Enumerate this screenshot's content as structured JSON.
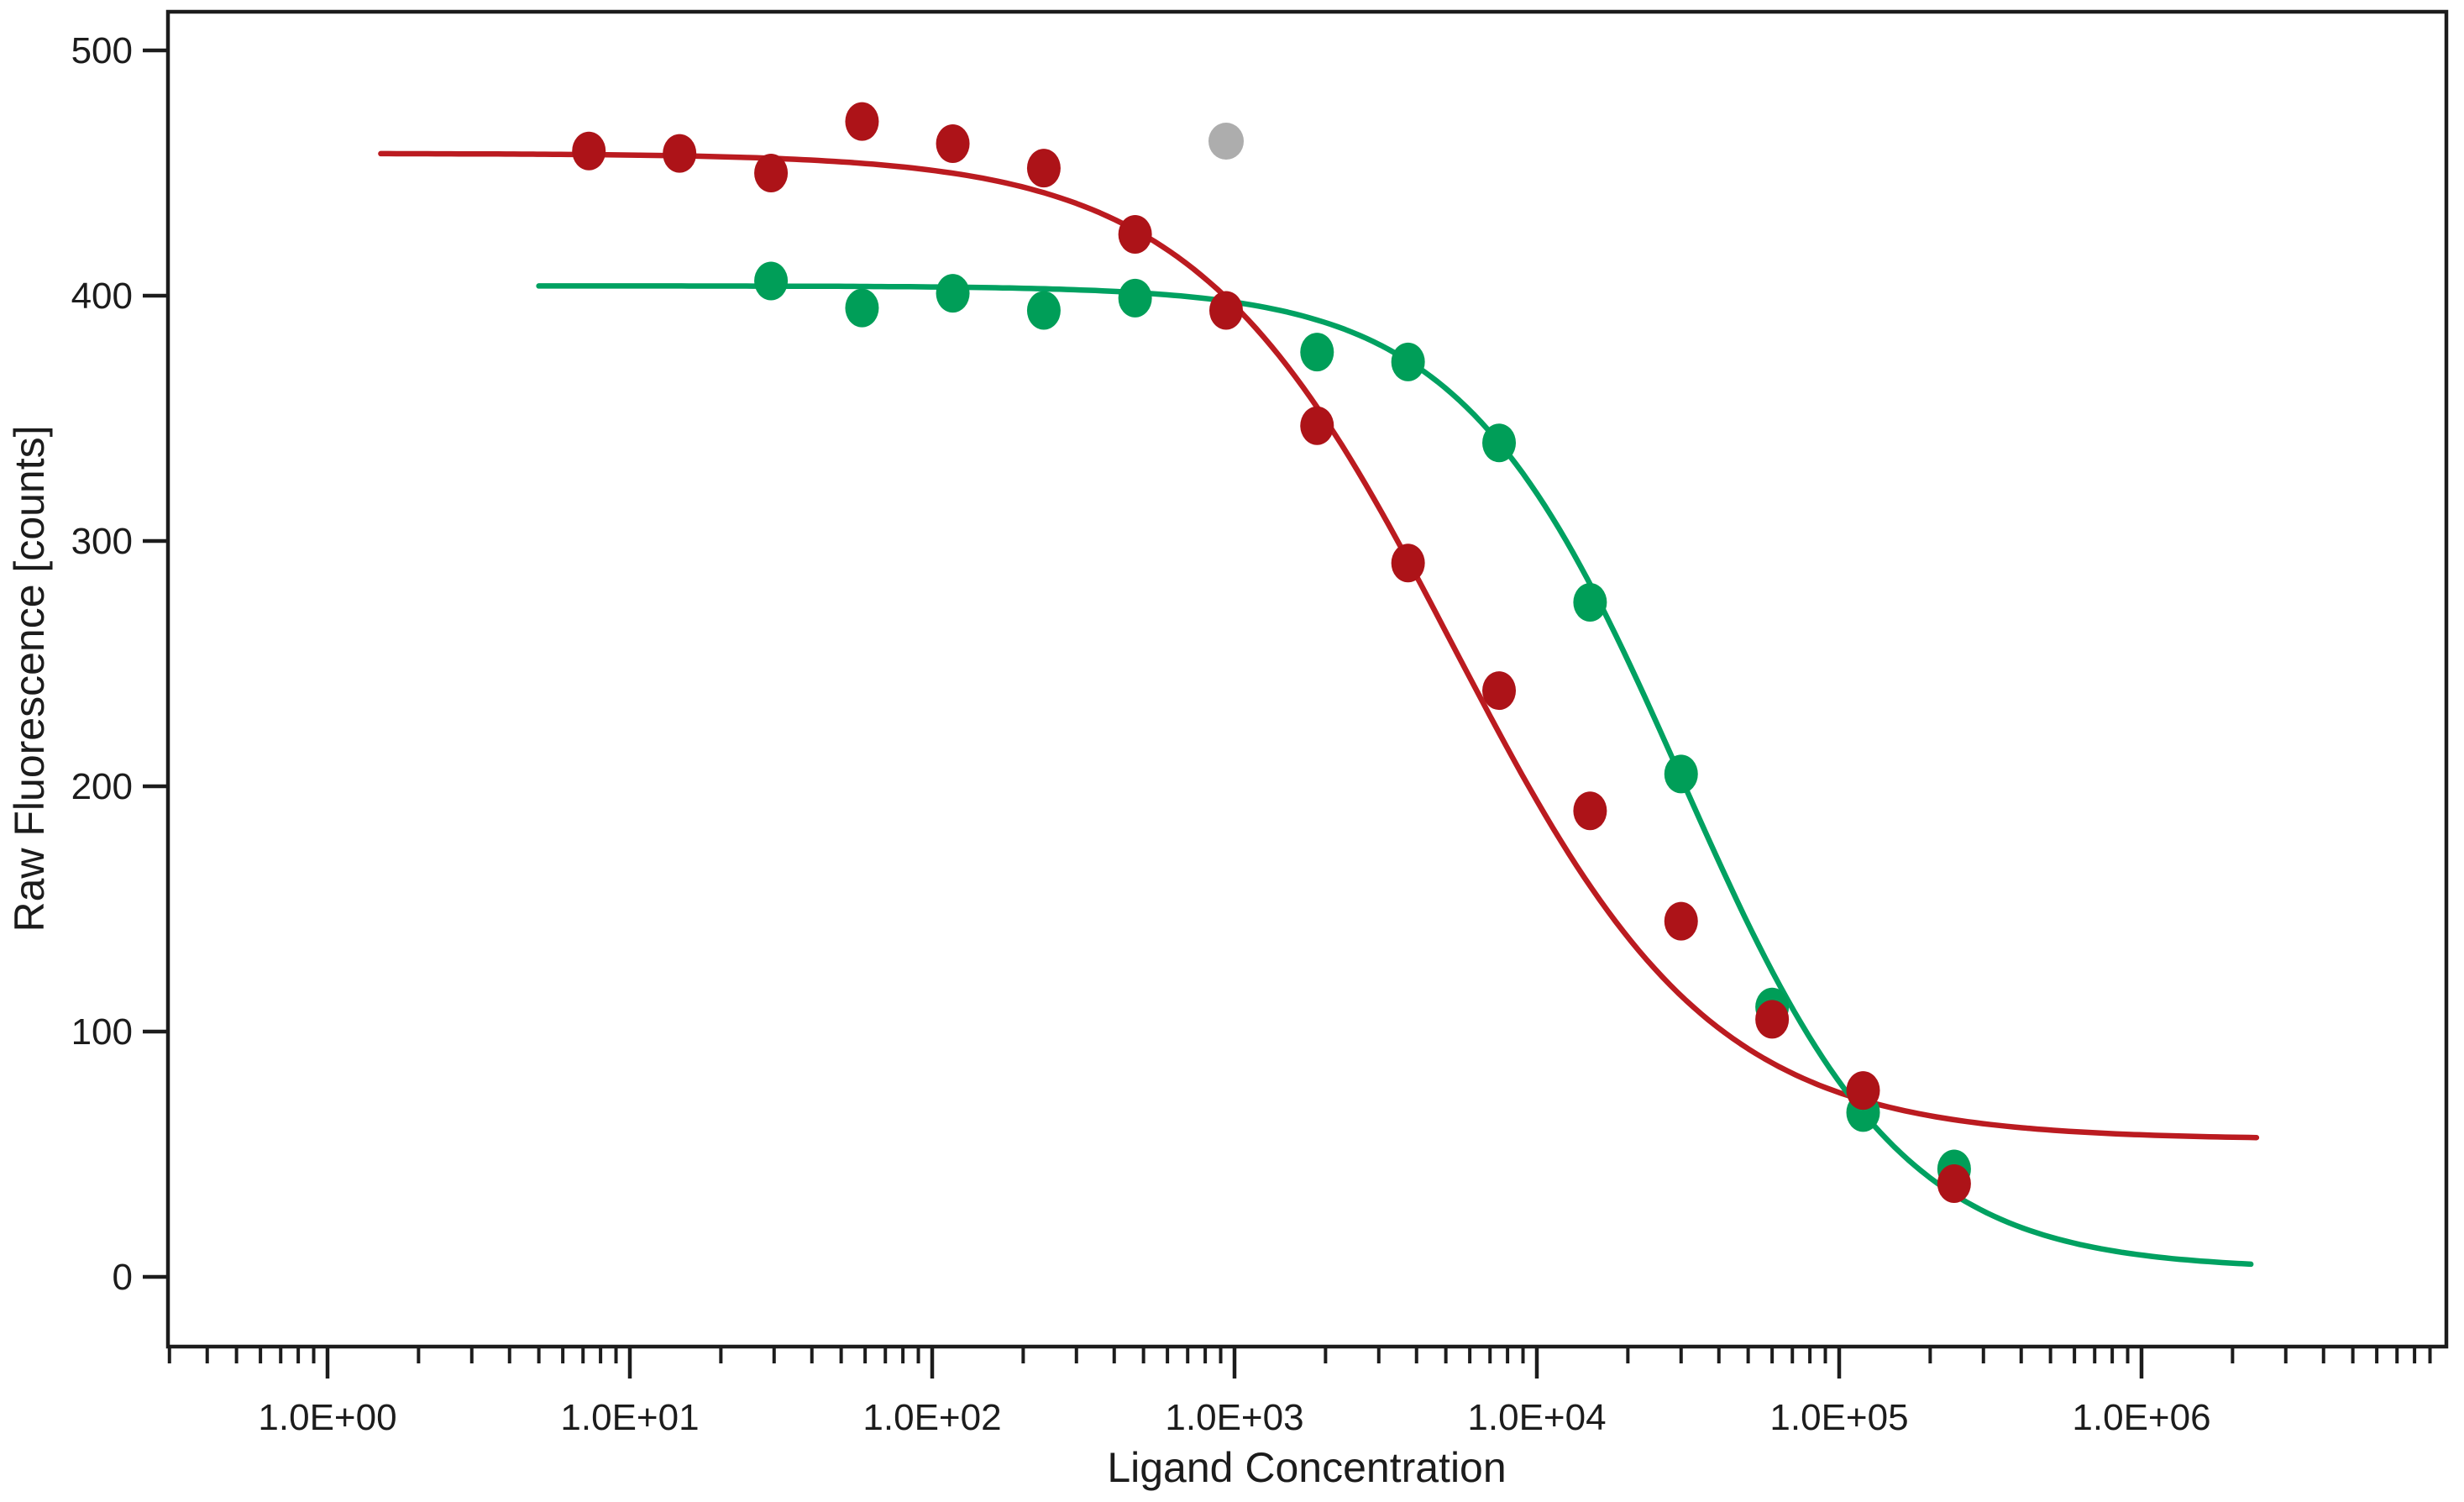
{
  "chart_data": {
    "type": "scatter",
    "title": "",
    "xlabel": "Ligand Concentration",
    "ylabel": "Raw Fluorescence [counts]",
    "x_scale": "log10",
    "xlim": [
      0.3,
      10000000
    ],
    "ylim": [
      -28,
      519
    ],
    "grid": "off",
    "legend": "none",
    "frame_color": "#1c1c1c",
    "x_major_ticks": {
      "values": [
        1,
        10,
        100,
        1000,
        10000,
        100000,
        1000000
      ],
      "labels": [
        "1.0E+00",
        "1.0E+01",
        "1.0E+02",
        "1.0E+03",
        "1.0E+04",
        "1.0E+05",
        "1.0E+06"
      ]
    },
    "y_major_ticks": {
      "values": [
        0,
        100,
        200,
        300,
        400,
        500
      ],
      "labels": [
        "0",
        "100",
        "200",
        "300",
        "400",
        "500"
      ]
    },
    "series": [
      {
        "name": "red-series",
        "marker_color": "#AD1318",
        "curve_color": "#BB1B20",
        "x": [
          7.32,
          14.6,
          29.3,
          58.6,
          117,
          234,
          469,
          938,
          1875,
          3750,
          7500,
          15000,
          30000,
          60000,
          120000,
          240000
        ],
        "y": [
          459,
          458,
          450,
          471,
          462,
          452,
          425,
          394,
          347,
          291,
          239,
          190,
          145,
          105,
          76,
          38
        ],
        "fit_curve": {
          "model": "4PL",
          "top": 458,
          "bottom": 56,
          "ic50": 5300,
          "hill": 1.02,
          "x_range": [
            1.5,
            2400000
          ]
        }
      },
      {
        "name": "green-series",
        "marker_color": "#009E58",
        "curve_color": "#00A161",
        "x": [
          29.3,
          58.6,
          117,
          234,
          469,
          1875,
          3750,
          7500,
          15000,
          30000,
          60000,
          120000,
          240000
        ],
        "y": [
          406,
          395,
          401,
          394,
          399,
          377,
          373,
          340,
          275,
          205,
          110,
          67,
          44
        ],
        "fit_curve": {
          "model": "4PL",
          "top": 404,
          "bottom": 3,
          "ic50": 30000,
          "hill": 1.2,
          "x_range": [
            5,
            2300000
          ]
        }
      }
    ],
    "excluded_points": [
      {
        "series": "green-series",
        "color": "#ADADAD",
        "x": 938,
        "y": 463
      }
    ]
  }
}
